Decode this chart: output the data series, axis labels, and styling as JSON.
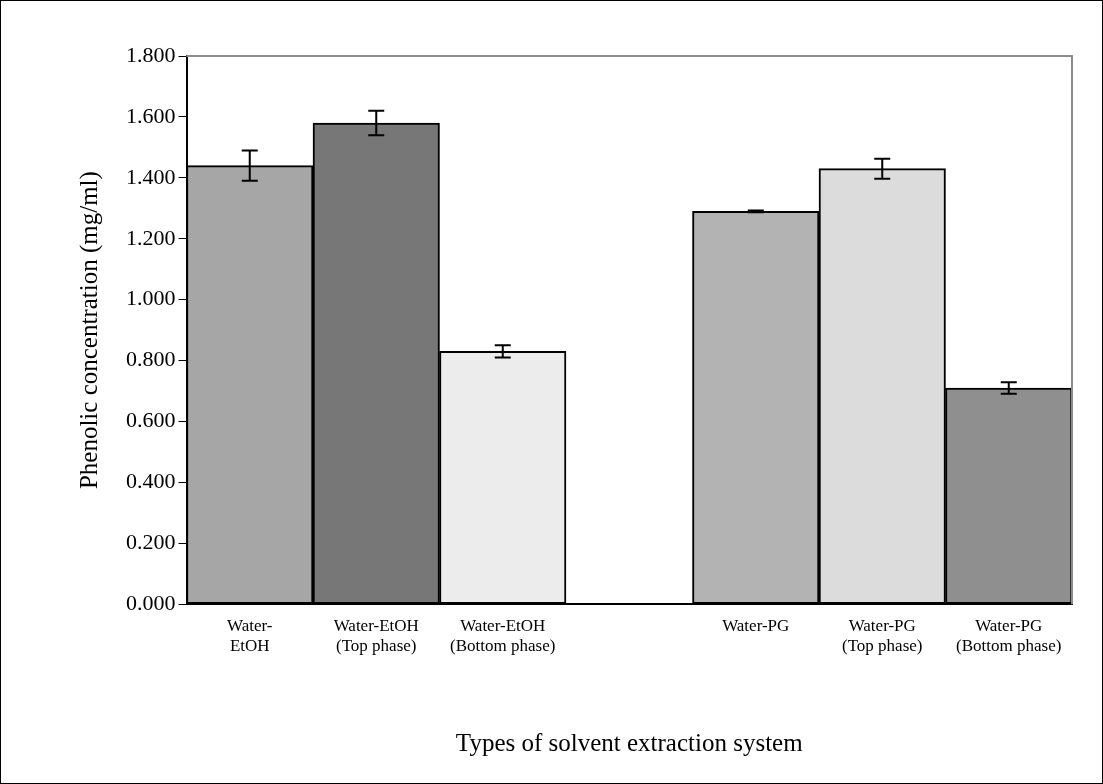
{
  "chart_data": {
    "type": "bar",
    "xlabel": "Types of solvent extraction system",
    "ylabel": "Phenolic concentration (mg/ml)",
    "categories": [
      "Water-\nEtOH",
      "Water-EtOH\n(Top phase)",
      "Water-EtOH\n(Bottom phase)",
      null,
      "Water-PG",
      "Water-PG\n(Top phase)",
      "Water-PG\n(Bottom phase)"
    ],
    "values": [
      1.44,
      1.58,
      0.83,
      null,
      1.29,
      1.43,
      0.71
    ],
    "errors": [
      0.05,
      0.04,
      0.02,
      null,
      0.003,
      0.033,
      0.019
    ],
    "colors": [
      "#a6a6a6",
      "#777777",
      "#ececec",
      "#ffffff",
      "#b3b3b3",
      "#dcdcdc",
      "#8f8f8f"
    ],
    "ylim": [
      0,
      1.8
    ],
    "yticks": [
      {
        "value": 0,
        "label": "0.000"
      },
      {
        "value": 0.2,
        "label": "0.200"
      },
      {
        "value": 0.4,
        "label": "0.400"
      },
      {
        "value": 0.6,
        "label": "0.600"
      },
      {
        "value": 0.8,
        "label": "0.800"
      },
      {
        "value": 1.0,
        "label": "1.000"
      },
      {
        "value": 1.2,
        "label": "1.200"
      },
      {
        "value": 1.4,
        "label": "1.400"
      },
      {
        "value": 1.6,
        "label": "1.600"
      },
      {
        "value": 1.8,
        "label": "1.800"
      }
    ],
    "grid": false,
    "legend": false
  }
}
